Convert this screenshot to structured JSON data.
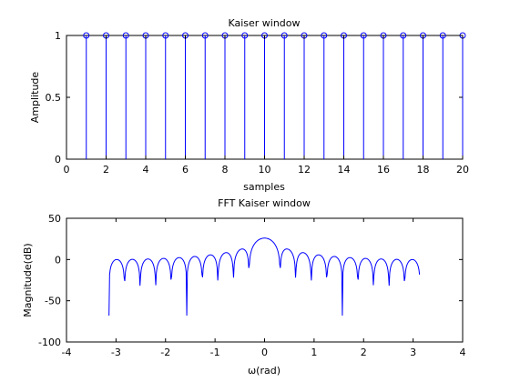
{
  "chart_data": [
    {
      "type": "stem",
      "title": "Kaiser window",
      "xlabel": "samples",
      "ylabel": "Amplitude",
      "xlim": [
        0,
        20
      ],
      "ylim": [
        0,
        1
      ],
      "xticks": [
        "0",
        "2",
        "4",
        "6",
        "8",
        "10",
        "12",
        "14",
        "16",
        "18",
        "20"
      ],
      "yticks": [
        "0",
        "0.5",
        "1"
      ],
      "color": "#0000ff",
      "x": [
        1,
        2,
        3,
        4,
        5,
        6,
        7,
        8,
        9,
        10,
        11,
        12,
        13,
        14,
        15,
        16,
        17,
        18,
        19,
        20
      ],
      "values": [
        1,
        1,
        1,
        1,
        1,
        1,
        1,
        1,
        1,
        1,
        1,
        1,
        1,
        1,
        1,
        1,
        1,
        1,
        1,
        1
      ]
    },
    {
      "type": "line",
      "title": "FFT Kaiser window",
      "xlabel": "ω(rad)",
      "ylabel": "Magnitude(dB)",
      "xlim": [
        -4,
        4
      ],
      "ylim": [
        -100,
        50
      ],
      "xticks": [
        "-4",
        "-3",
        "-2",
        "-1",
        "0",
        "1",
        "2",
        "3",
        "4"
      ],
      "yticks": [
        "50",
        "0",
        "-50",
        "-100"
      ],
      "color": "#0000ff",
      "x_range": [
        -3.1416,
        3.1416
      ],
      "mainlobe_peak_db": 26,
      "sidelobe_peak_db": -1,
      "null_depths_db": {
        "pi_over_2": -68
      }
    }
  ]
}
